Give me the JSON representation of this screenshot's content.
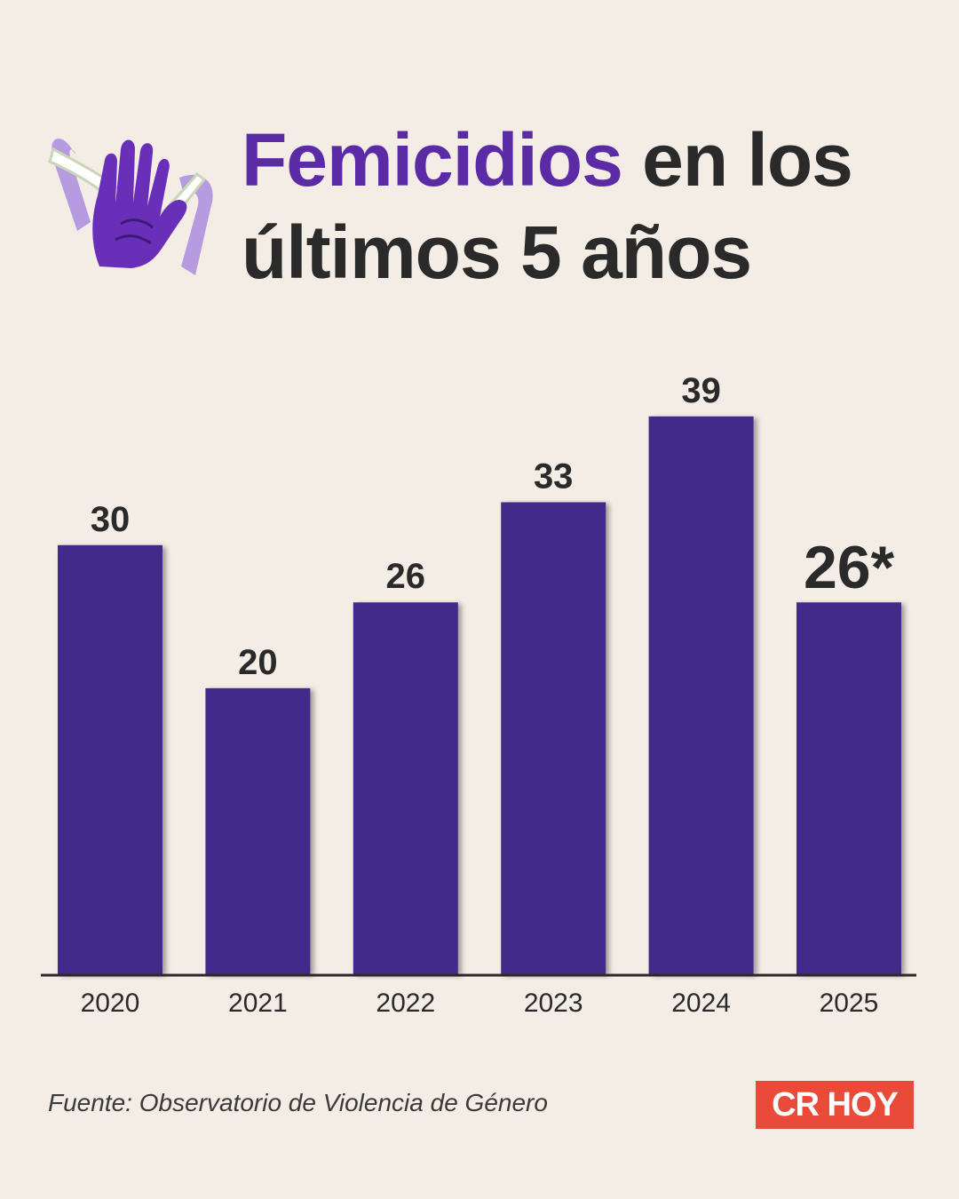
{
  "header": {
    "title_accent": "Femicidios",
    "title_rest_line1": " en los",
    "title_line2": "últimos 5 años",
    "emblem_icon": "raised-hand-ribbon-icon"
  },
  "chart_data": {
    "type": "bar",
    "categories": [
      "2020",
      "2021",
      "2022",
      "2023",
      "2024",
      "2025"
    ],
    "values": [
      30,
      20,
      26,
      33,
      39,
      26
    ],
    "data_labels": [
      "30",
      "20",
      "26",
      "33",
      "39",
      "26*"
    ],
    "ylim": [
      0,
      50
    ],
    "bar_color": "#432c8a",
    "grid": false,
    "legend": "none"
  },
  "footer": {
    "source": "Fuente: Observatorio de Violencia de Género",
    "logo_text": "CR HOY",
    "logo_color": "#ea4a3a"
  }
}
